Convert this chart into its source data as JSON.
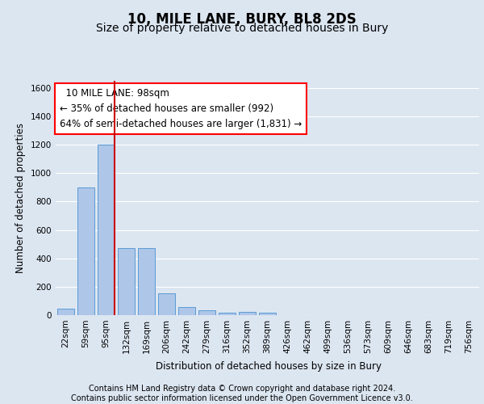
{
  "title": "10, MILE LANE, BURY, BL8 2DS",
  "subtitle": "Size of property relative to detached houses in Bury",
  "xlabel": "Distribution of detached houses by size in Bury",
  "ylabel": "Number of detached properties",
  "footer_line1": "Contains HM Land Registry data © Crown copyright and database right 2024.",
  "footer_line2": "Contains public sector information licensed under the Open Government Licence v3.0.",
  "annotation_line1": "  10 MILE LANE: 98sqm  ",
  "annotation_line2": "← 35% of detached houses are smaller (992)",
  "annotation_line3": "64% of semi-detached houses are larger (1,831) →",
  "bar_labels": [
    "22sqm",
    "59sqm",
    "95sqm",
    "132sqm",
    "169sqm",
    "206sqm",
    "242sqm",
    "279sqm",
    "316sqm",
    "352sqm",
    "389sqm",
    "426sqm",
    "462sqm",
    "499sqm",
    "536sqm",
    "573sqm",
    "609sqm",
    "646sqm",
    "683sqm",
    "719sqm",
    "756sqm"
  ],
  "bar_values": [
    45,
    900,
    1200,
    470,
    470,
    155,
    55,
    32,
    18,
    20,
    18,
    0,
    0,
    0,
    0,
    0,
    0,
    0,
    0,
    0,
    0
  ],
  "bar_color": "#aec6e8",
  "bar_edge_color": "#5b9bd5",
  "vline_color": "#cc0000",
  "vline_x_index": 2,
  "ylim": [
    0,
    1650
  ],
  "yticks": [
    0,
    200,
    400,
    600,
    800,
    1000,
    1200,
    1400,
    1600
  ],
  "bg_color": "#dce6f1",
  "plot_bg_color": "#dce6f1",
  "grid_color": "#ffffff",
  "title_fontsize": 12,
  "subtitle_fontsize": 10,
  "annotation_fontsize": 8.5,
  "axis_label_fontsize": 8.5,
  "tick_fontsize": 7.5,
  "footer_fontsize": 7
}
